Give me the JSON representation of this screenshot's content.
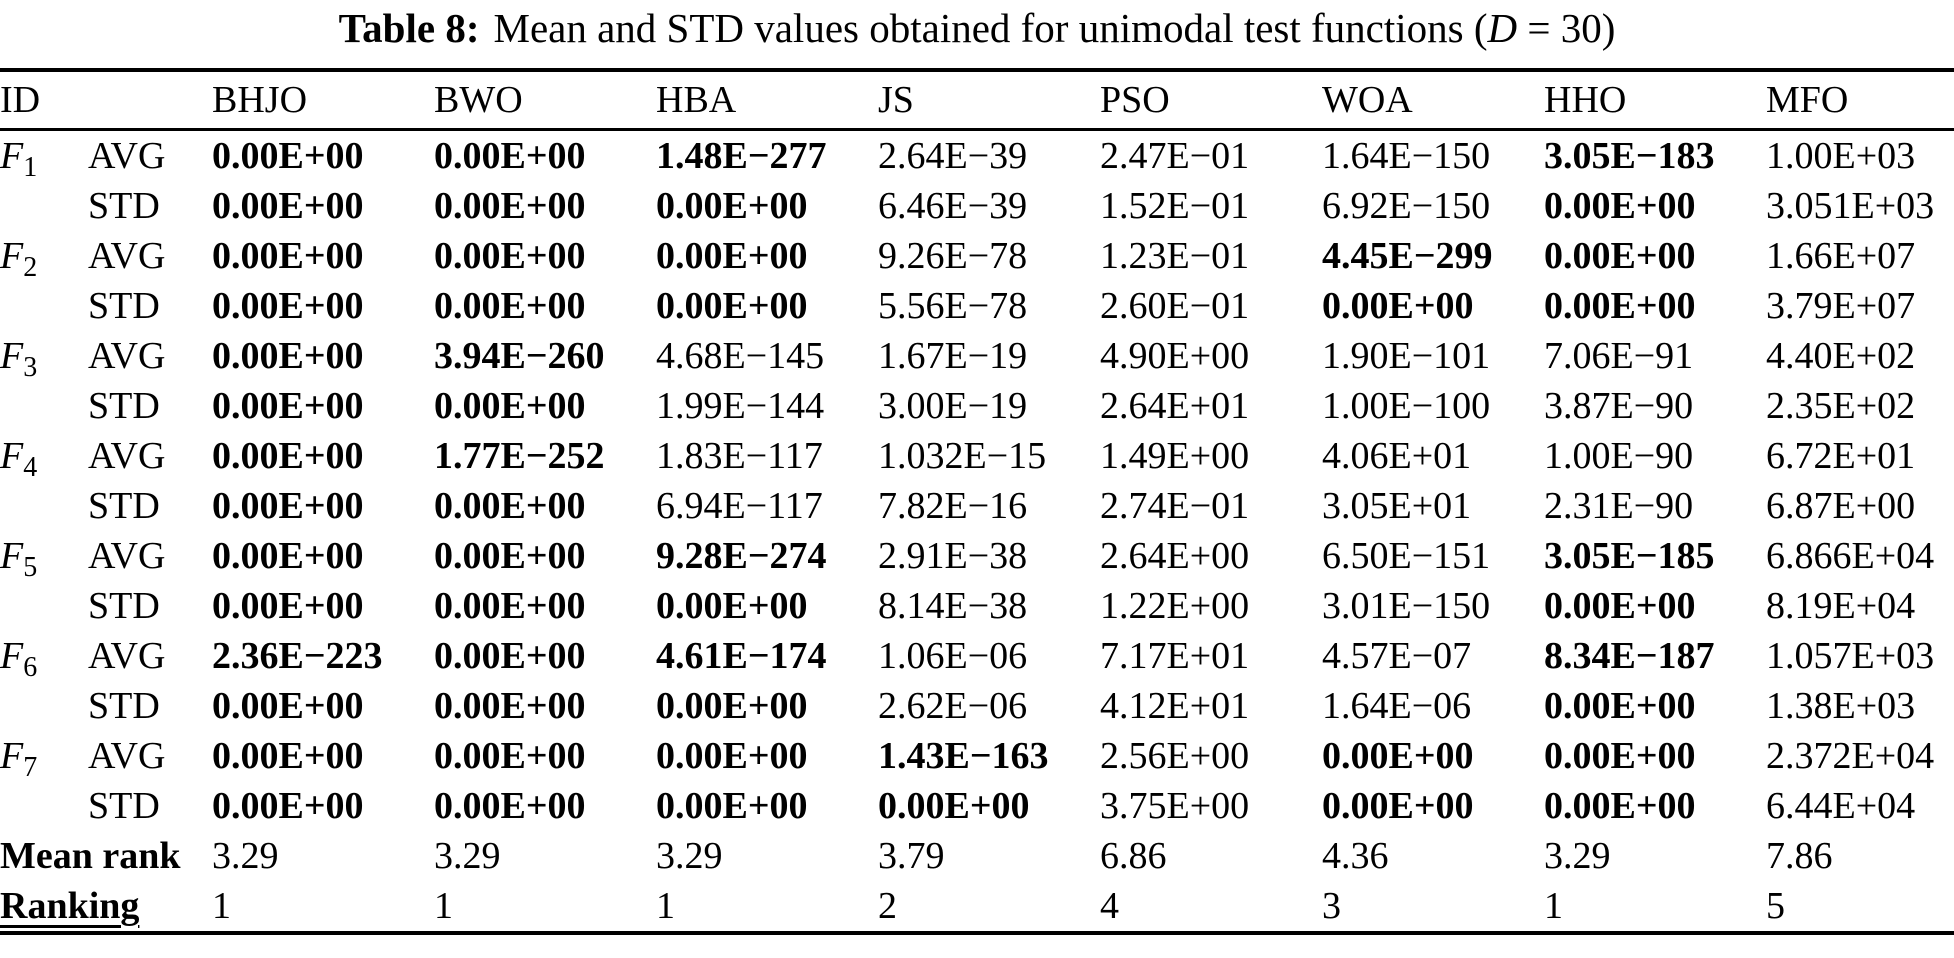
{
  "caption": {
    "label": "Table 8:",
    "body": "Mean and STD values obtained for unimodal test functions (",
    "dvar": "D",
    "tail": " = 30)"
  },
  "table": {
    "columns": [
      "ID",
      "",
      "BHJO",
      "BWO",
      "HBA",
      "JS",
      "PSO",
      "WOA",
      "HHO",
      "MFO"
    ],
    "rows": [
      {
        "func": "F",
        "sub": "1",
        "stat": "AVG",
        "cells": [
          {
            "v": "0.00E+00",
            "b": true
          },
          {
            "v": "0.00E+00",
            "b": true
          },
          {
            "v": "1.48E−277",
            "b": true
          },
          {
            "v": "2.64E−39",
            "b": false
          },
          {
            "v": "2.47E−01",
            "b": false
          },
          {
            "v": "1.64E−150",
            "b": false
          },
          {
            "v": "3.05E−183",
            "b": true
          },
          {
            "v": "1.00E+03",
            "b": false
          }
        ]
      },
      {
        "func": "",
        "sub": "",
        "stat": "STD",
        "cells": [
          {
            "v": "0.00E+00",
            "b": true
          },
          {
            "v": "0.00E+00",
            "b": true
          },
          {
            "v": "0.00E+00",
            "b": true
          },
          {
            "v": "6.46E−39",
            "b": false
          },
          {
            "v": "1.52E−01",
            "b": false
          },
          {
            "v": "6.92E−150",
            "b": false
          },
          {
            "v": "0.00E+00",
            "b": true
          },
          {
            "v": "3.051E+03",
            "b": false
          }
        ]
      },
      {
        "func": "F",
        "sub": "2",
        "stat": "AVG",
        "cells": [
          {
            "v": "0.00E+00",
            "b": true
          },
          {
            "v": "0.00E+00",
            "b": true
          },
          {
            "v": "0.00E+00",
            "b": true
          },
          {
            "v": "9.26E−78",
            "b": false
          },
          {
            "v": "1.23E−01",
            "b": false
          },
          {
            "v": "4.45E−299",
            "b": true
          },
          {
            "v": "0.00E+00",
            "b": true
          },
          {
            "v": "1.66E+07",
            "b": false
          }
        ]
      },
      {
        "func": "",
        "sub": "",
        "stat": "STD",
        "cells": [
          {
            "v": "0.00E+00",
            "b": true
          },
          {
            "v": "0.00E+00",
            "b": true
          },
          {
            "v": "0.00E+00",
            "b": true
          },
          {
            "v": "5.56E−78",
            "b": false
          },
          {
            "v": "2.60E−01",
            "b": false
          },
          {
            "v": "0.00E+00",
            "b": true
          },
          {
            "v": "0.00E+00",
            "b": true
          },
          {
            "v": "3.79E+07",
            "b": false
          }
        ]
      },
      {
        "func": "F",
        "sub": "3",
        "stat": "AVG",
        "cells": [
          {
            "v": "0.00E+00",
            "b": true
          },
          {
            "v": "3.94E−260",
            "b": true
          },
          {
            "v": "4.68E−145",
            "b": false
          },
          {
            "v": "1.67E−19",
            "b": false
          },
          {
            "v": "4.90E+00",
            "b": false
          },
          {
            "v": "1.90E−101",
            "b": false
          },
          {
            "v": "7.06E−91",
            "b": false
          },
          {
            "v": "4.40E+02",
            "b": false
          }
        ]
      },
      {
        "func": "",
        "sub": "",
        "stat": "STD",
        "cells": [
          {
            "v": "0.00E+00",
            "b": true
          },
          {
            "v": "0.00E+00",
            "b": true
          },
          {
            "v": "1.99E−144",
            "b": false
          },
          {
            "v": "3.00E−19",
            "b": false
          },
          {
            "v": "2.64E+01",
            "b": false
          },
          {
            "v": "1.00E−100",
            "b": false
          },
          {
            "v": "3.87E−90",
            "b": false
          },
          {
            "v": "2.35E+02",
            "b": false
          }
        ]
      },
      {
        "func": "F",
        "sub": "4",
        "stat": "AVG",
        "cells": [
          {
            "v": "0.00E+00",
            "b": true
          },
          {
            "v": "1.77E−252",
            "b": true
          },
          {
            "v": "1.83E−117",
            "b": false
          },
          {
            "v": "1.032E−15",
            "b": false
          },
          {
            "v": "1.49E+00",
            "b": false
          },
          {
            "v": "4.06E+01",
            "b": false
          },
          {
            "v": "1.00E−90",
            "b": false
          },
          {
            "v": "6.72E+01",
            "b": false
          }
        ]
      },
      {
        "func": "",
        "sub": "",
        "stat": "STD",
        "cells": [
          {
            "v": "0.00E+00",
            "b": true
          },
          {
            "v": "0.00E+00",
            "b": true
          },
          {
            "v": "6.94E−117",
            "b": false
          },
          {
            "v": "7.82E−16",
            "b": false
          },
          {
            "v": "2.74E−01",
            "b": false
          },
          {
            "v": "3.05E+01",
            "b": false
          },
          {
            "v": "2.31E−90",
            "b": false
          },
          {
            "v": "6.87E+00",
            "b": false
          }
        ]
      },
      {
        "func": "F",
        "sub": "5",
        "stat": "AVG",
        "cells": [
          {
            "v": "0.00E+00",
            "b": true
          },
          {
            "v": "0.00E+00",
            "b": true
          },
          {
            "v": "9.28E−274",
            "b": true
          },
          {
            "v": "2.91E−38",
            "b": false
          },
          {
            "v": "2.64E+00",
            "b": false
          },
          {
            "v": "6.50E−151",
            "b": false
          },
          {
            "v": "3.05E−185",
            "b": true
          },
          {
            "v": "6.866E+04",
            "b": false
          }
        ]
      },
      {
        "func": "",
        "sub": "",
        "stat": "STD",
        "cells": [
          {
            "v": "0.00E+00",
            "b": true
          },
          {
            "v": "0.00E+00",
            "b": true
          },
          {
            "v": "0.00E+00",
            "b": true
          },
          {
            "v": "8.14E−38",
            "b": false
          },
          {
            "v": "1.22E+00",
            "b": false
          },
          {
            "v": "3.01E−150",
            "b": false
          },
          {
            "v": "0.00E+00",
            "b": true
          },
          {
            "v": "8.19E+04",
            "b": false
          }
        ]
      },
      {
        "func": "F",
        "sub": "6",
        "stat": "AVG",
        "cells": [
          {
            "v": "2.36E−223",
            "b": true
          },
          {
            "v": "0.00E+00",
            "b": true
          },
          {
            "v": "4.61E−174",
            "b": true
          },
          {
            "v": "1.06E−06",
            "b": false
          },
          {
            "v": "7.17E+01",
            "b": false
          },
          {
            "v": "4.57E−07",
            "b": false
          },
          {
            "v": "8.34E−187",
            "b": true
          },
          {
            "v": "1.057E+03",
            "b": false
          }
        ]
      },
      {
        "func": "",
        "sub": "",
        "stat": "STD",
        "cells": [
          {
            "v": "0.00E+00",
            "b": true
          },
          {
            "v": "0.00E+00",
            "b": true
          },
          {
            "v": "0.00E+00",
            "b": true
          },
          {
            "v": "2.62E−06",
            "b": false
          },
          {
            "v": "4.12E+01",
            "b": false
          },
          {
            "v": "1.64E−06",
            "b": false
          },
          {
            "v": "0.00E+00",
            "b": true
          },
          {
            "v": "1.38E+03",
            "b": false
          }
        ]
      },
      {
        "func": "F",
        "sub": "7",
        "stat": "AVG",
        "cells": [
          {
            "v": "0.00E+00",
            "b": true
          },
          {
            "v": "0.00E+00",
            "b": true
          },
          {
            "v": "0.00E+00",
            "b": true
          },
          {
            "v": "1.43E−163",
            "b": true
          },
          {
            "v": "2.56E+00",
            "b": false
          },
          {
            "v": "0.00E+00",
            "b": true
          },
          {
            "v": "0.00E+00",
            "b": true
          },
          {
            "v": "2.372E+04",
            "b": false
          }
        ]
      },
      {
        "func": "",
        "sub": "",
        "stat": "STD",
        "cells": [
          {
            "v": "0.00E+00",
            "b": true
          },
          {
            "v": "0.00E+00",
            "b": true
          },
          {
            "v": "0.00E+00",
            "b": true
          },
          {
            "v": "0.00E+00",
            "b": true
          },
          {
            "v": "3.75E+00",
            "b": false
          },
          {
            "v": "0.00E+00",
            "b": true
          },
          {
            "v": "0.00E+00",
            "b": true
          },
          {
            "v": "6.44E+04",
            "b": false
          }
        ]
      }
    ],
    "footer_rows": [
      {
        "label": "Mean rank",
        "underline": false,
        "cells": [
          {
            "v": "3.29"
          },
          {
            "v": "3.29"
          },
          {
            "v": "3.29"
          },
          {
            "v": "3.79"
          },
          {
            "v": "6.86"
          },
          {
            "v": "4.36"
          },
          {
            "v": "3.29"
          },
          {
            "v": "7.86"
          }
        ]
      },
      {
        "label": "Ranking",
        "underline": true,
        "cells": [
          {
            "v": "1"
          },
          {
            "v": "1"
          },
          {
            "v": "1"
          },
          {
            "v": "2"
          },
          {
            "v": "4"
          },
          {
            "v": "3"
          },
          {
            "v": "1"
          },
          {
            "v": "5"
          }
        ]
      }
    ]
  }
}
